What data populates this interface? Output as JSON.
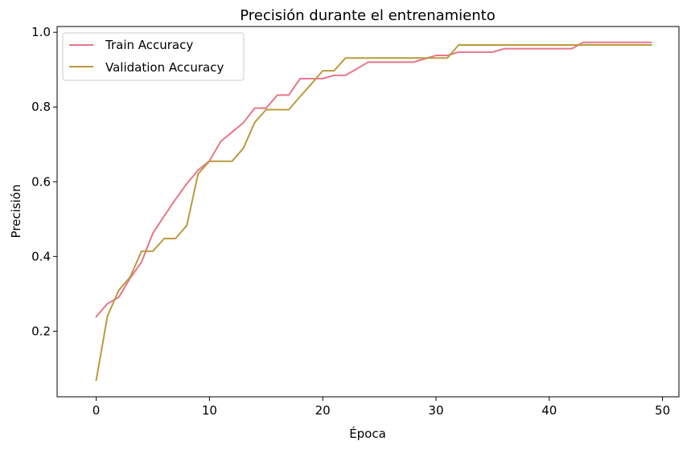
{
  "chart_data": {
    "type": "line",
    "title": "Precisión durante el entrenamiento",
    "xlabel": "Época",
    "ylabel": "Precisión",
    "xlim": [
      -3.45,
      51.45
    ],
    "ylim": [
      0.0245,
      1.0155
    ],
    "xticks": [
      0,
      10,
      20,
      30,
      40,
      50
    ],
    "yticks": [
      0.2,
      0.4,
      0.6,
      0.8,
      1.0
    ],
    "xtick_labels": [
      "0",
      "10",
      "20",
      "30",
      "40",
      "50"
    ],
    "ytick_labels": [
      "0.2",
      "0.4",
      "0.6",
      "0.8",
      "1.0"
    ],
    "grid": false,
    "legend_position": "top-left",
    "x": [
      0,
      1,
      2,
      3,
      4,
      5,
      6,
      7,
      8,
      9,
      10,
      11,
      12,
      13,
      14,
      15,
      16,
      17,
      18,
      19,
      20,
      21,
      22,
      23,
      24,
      25,
      26,
      27,
      28,
      29,
      30,
      31,
      32,
      33,
      34,
      35,
      36,
      37,
      38,
      39,
      40,
      41,
      42,
      43,
      44,
      45,
      46,
      47,
      48,
      49
    ],
    "series": [
      {
        "name": "Train Accuracy",
        "color": "#e8768a",
        "values": [
          0.239,
          0.274,
          0.291,
          0.342,
          0.385,
          0.462,
          0.508,
          0.553,
          0.595,
          0.631,
          0.656,
          0.708,
          0.733,
          0.758,
          0.797,
          0.797,
          0.832,
          0.832,
          0.876,
          0.876,
          0.876,
          0.885,
          0.885,
          0.902,
          0.92,
          0.92,
          0.92,
          0.92,
          0.92,
          0.929,
          0.938,
          0.938,
          0.947,
          0.947,
          0.947,
          0.947,
          0.956,
          0.956,
          0.956,
          0.956,
          0.956,
          0.956,
          0.956,
          0.973,
          0.973,
          0.973,
          0.973,
          0.973,
          0.973,
          0.973
        ]
      },
      {
        "name": "Validation Accuracy",
        "color": "#bb9a3e",
        "values": [
          0.069,
          0.241,
          0.31,
          0.345,
          0.414,
          0.414,
          0.448,
          0.448,
          0.483,
          0.621,
          0.655,
          0.655,
          0.655,
          0.69,
          0.759,
          0.793,
          0.793,
          0.793,
          0.828,
          0.862,
          0.897,
          0.897,
          0.931,
          0.931,
          0.931,
          0.931,
          0.931,
          0.931,
          0.931,
          0.931,
          0.931,
          0.931,
          0.966,
          0.966,
          0.966,
          0.966,
          0.966,
          0.966,
          0.966,
          0.966,
          0.966,
          0.966,
          0.966,
          0.966,
          0.966,
          0.966,
          0.966,
          0.966,
          0.966,
          0.966
        ]
      }
    ]
  }
}
